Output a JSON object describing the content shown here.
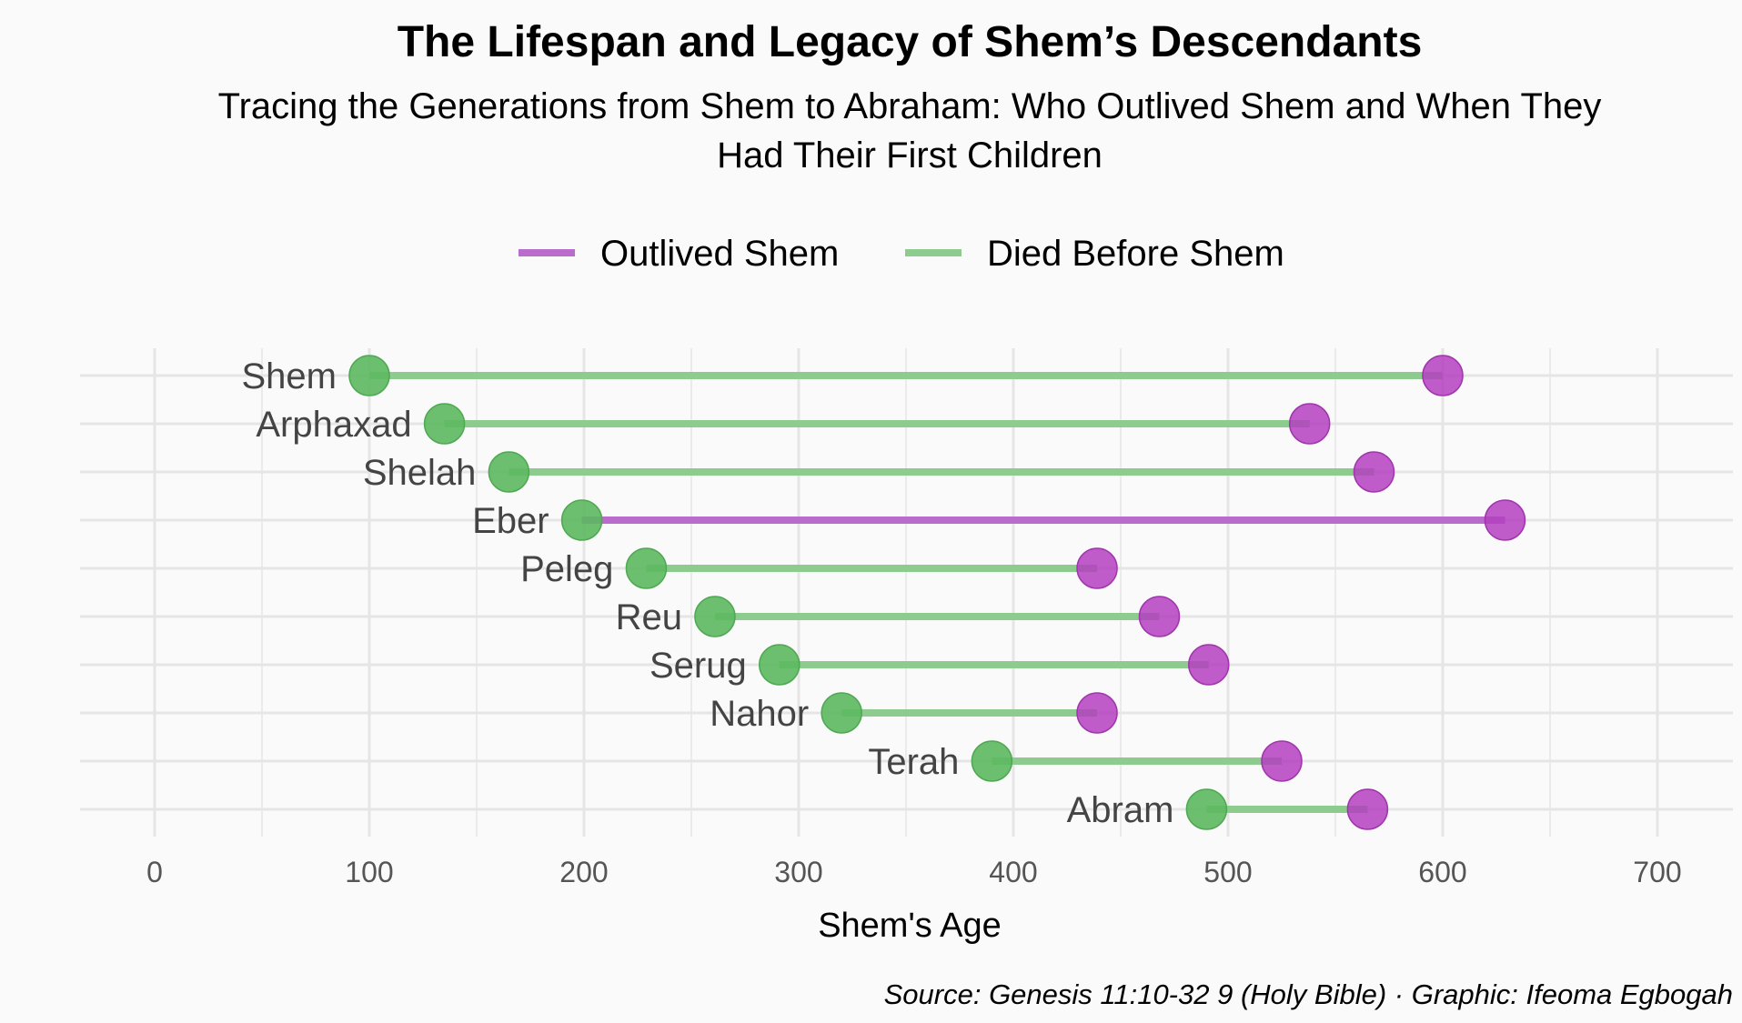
{
  "chart_data": {
    "type": "dumbbell",
    "title": "The Lifespan and Legacy of Shem’s Descendants",
    "subtitle_lines": [
      "Tracing the Generations from Shem to Abraham: Who Outlived Shem and When They",
      "Had Their First Children"
    ],
    "xlabel": "Shem's Age",
    "ylabel": "",
    "xlim": [
      0,
      700
    ],
    "x_ticks": [
      0,
      100,
      200,
      300,
      400,
      500,
      600,
      700
    ],
    "grid": true,
    "legend_position": "top",
    "legend": [
      {
        "label": "Outlived Shem",
        "color": "#b96ccb"
      },
      {
        "label": "Died Before Shem",
        "color": "#8dcb8f"
      }
    ],
    "colors": {
      "outlived_line": "#b96ccb",
      "died_line": "#8dcb8f",
      "start_point": "#5cb85f",
      "end_point": "#b43fc0"
    },
    "rows": [
      {
        "name": "Shem",
        "start": 100,
        "end": 600,
        "outlived": false
      },
      {
        "name": "Arphaxad",
        "start": 135,
        "end": 538,
        "outlived": false
      },
      {
        "name": "Shelah",
        "start": 165,
        "end": 568,
        "outlived": false
      },
      {
        "name": "Eber",
        "start": 199,
        "end": 629,
        "outlived": true
      },
      {
        "name": "Peleg",
        "start": 229,
        "end": 439,
        "outlived": false
      },
      {
        "name": "Reu",
        "start": 261,
        "end": 468,
        "outlived": false
      },
      {
        "name": "Serug",
        "start": 291,
        "end": 491,
        "outlived": false
      },
      {
        "name": "Nahor",
        "start": 320,
        "end": 439,
        "outlived": false
      },
      {
        "name": "Terah",
        "start": 390,
        "end": 525,
        "outlived": false
      },
      {
        "name": "Abram",
        "start": 490,
        "end": 565,
        "outlived": false
      }
    ],
    "caption": "Source: Genesis 11:10-32 9 (Holy Bible) · Graphic: Ifeoma Egbogah"
  }
}
